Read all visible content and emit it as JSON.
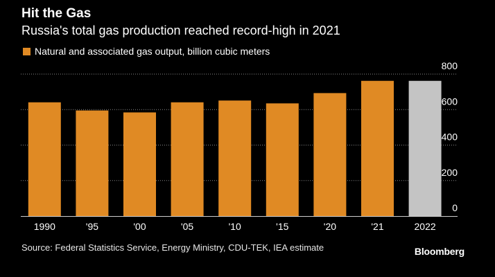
{
  "colors": {
    "background": "#000000",
    "bar": "#e08a24",
    "estimate_bar": "#c4c4c4",
    "gridline": "#8a8a8a",
    "text": "#ffffff"
  },
  "chart_data": {
    "type": "bar",
    "title": "Hit the Gas",
    "subtitle": "Russia's total gas production reached record-high in 2021",
    "legend": [
      "Natural and associated gas output, billion cubic meters"
    ],
    "categories": [
      "1990",
      "'95",
      "'00",
      "'05",
      "'10",
      "'15",
      "'20",
      "'21",
      "2022"
    ],
    "values": [
      641,
      595,
      584,
      641,
      651,
      635,
      693,
      762,
      762
    ],
    "estimate_flags": [
      false,
      false,
      false,
      false,
      false,
      false,
      false,
      false,
      true
    ],
    "ylim": [
      0,
      800
    ],
    "yticks": [
      0,
      200,
      400,
      600,
      800
    ],
    "y_axis_position": "right",
    "grid": true,
    "xlabel": "",
    "ylabel": ""
  },
  "source": "Source: Federal Statistics Service, Energy Ministry, CDU-TEK, IEA estimate",
  "brand": "Bloomberg"
}
